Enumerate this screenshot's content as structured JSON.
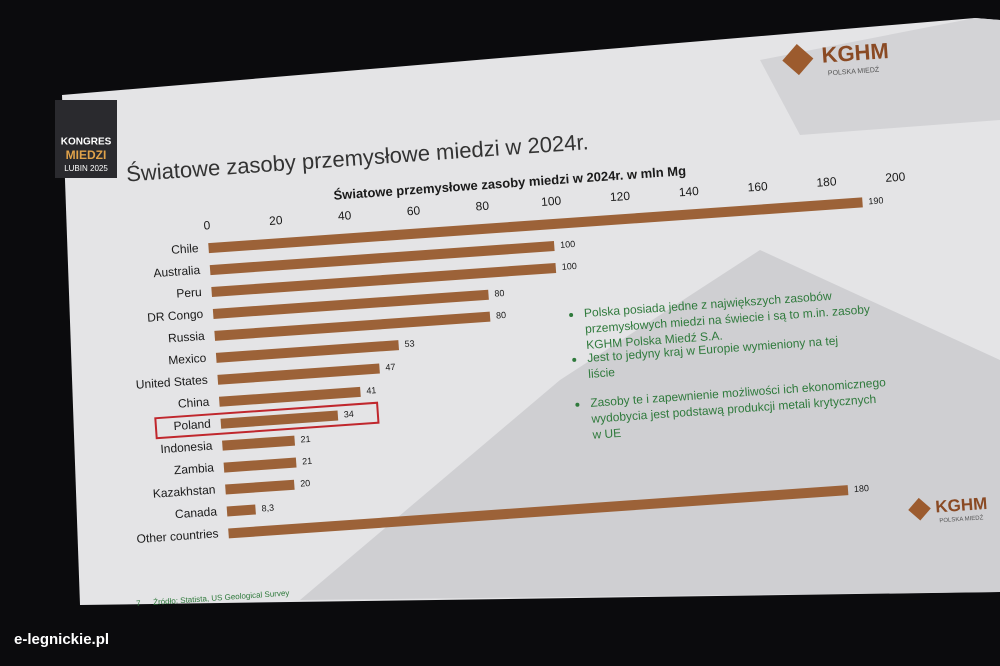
{
  "header": {
    "title": "Światowe zasoby przemysłowe miedzi w 2024r.",
    "logo": "KGHM",
    "logo_sub": "POLSKA MIEDŹ",
    "badge": [
      "KONGRES",
      "MIEDZI",
      "LUBIN 2025"
    ]
  },
  "chart_data": {
    "type": "hbar",
    "title": "Światowe przemysłowe zasoby miedzi w 2024r. w mln Mg",
    "categories": [
      "Chile",
      "Australia",
      "Peru",
      "DR Congo",
      "Russia",
      "Mexico",
      "United States",
      "China",
      "Poland",
      "Indonesia",
      "Zambia",
      "Kazakhstan",
      "Canada",
      "Other countries"
    ],
    "values": [
      190,
      100,
      100,
      80,
      80,
      53,
      47,
      41,
      34,
      21,
      21,
      20,
      8.3,
      180
    ],
    "value_labels": [
      "190",
      "100",
      "100",
      "80",
      "80",
      "53",
      "47",
      "41",
      "34",
      "21",
      "21",
      "20",
      "8,3",
      "180"
    ],
    "color": "#9c6238",
    "xlim": [
      0,
      200
    ],
    "xticks": [
      0,
      20,
      40,
      60,
      80,
      100,
      120,
      140,
      160,
      180,
      200
    ],
    "highlight": "Poland",
    "highlight_color": "#c0272d"
  },
  "bullets": [
    "Polska posiada jedne z największych zasobów przemysłowych miedzi na świecie i są to m.in. zasoby KGHM Polska Miedź S.A.",
    "Jest to jedyny kraj w Europie wymieniony na tej liście",
    "Zasoby te i zapewnienie możliwości ich ekonomicznego wydobycia jest podstawą produkcji metali krytycznych w UE"
  ],
  "footer": {
    "page": "7",
    "source": "Źródło: Statista, US Geological Survey",
    "watermark": "e-legnickie.pl"
  }
}
